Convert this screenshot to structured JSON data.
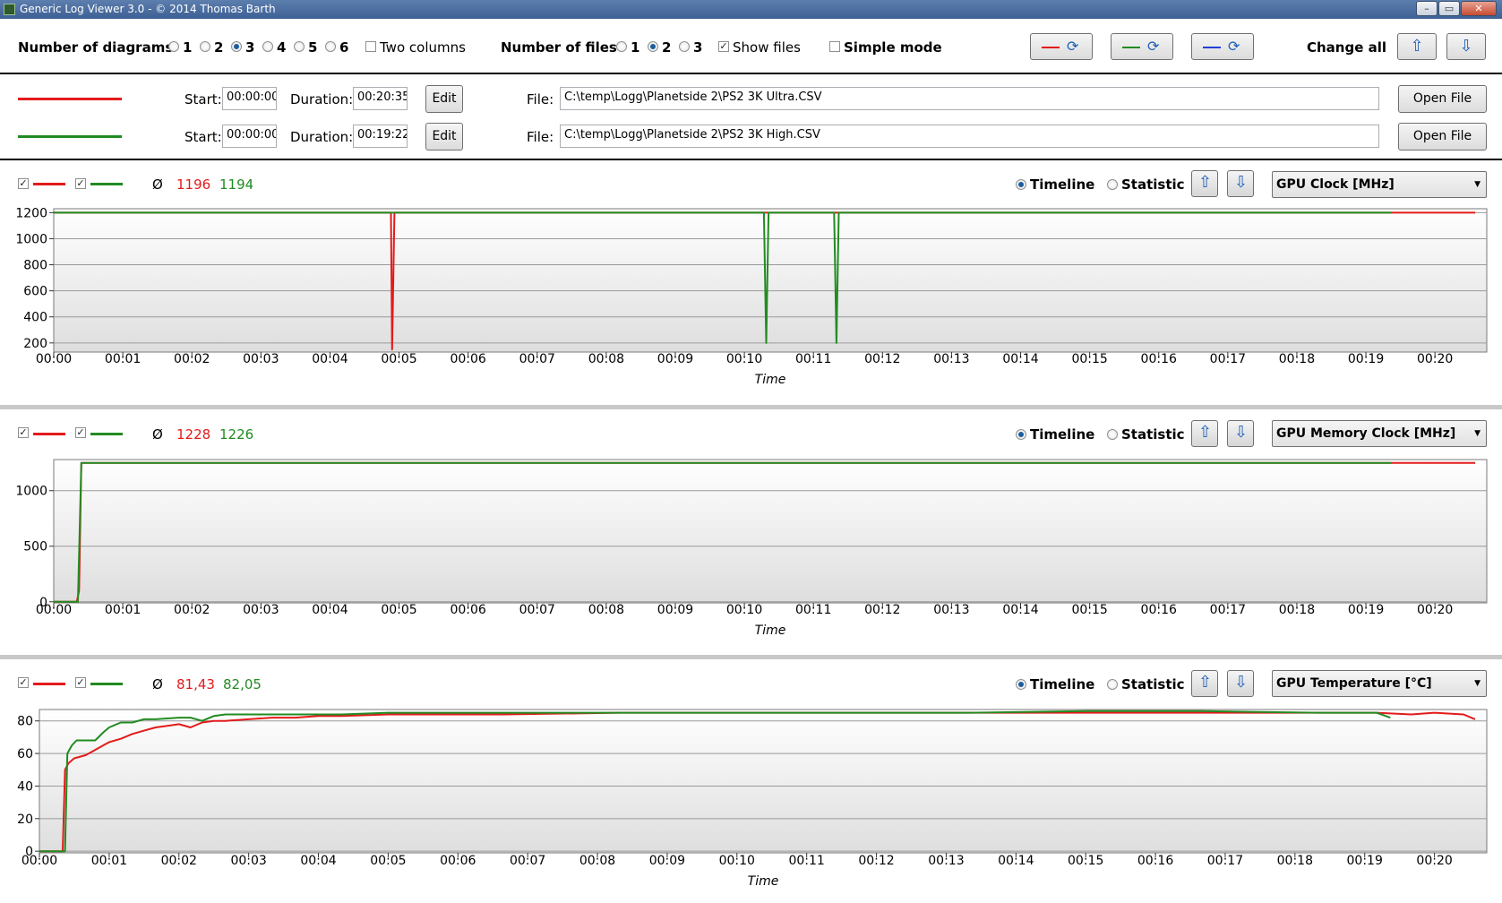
{
  "window": {
    "title": "Generic Log Viewer 3.0 - © 2014 Thomas Barth",
    "buttons": [
      "–",
      "▭",
      "✕"
    ]
  },
  "toolbar": {
    "num_diagrams_label": "Number of diagrams",
    "diagram_options": [
      "1",
      "2",
      "3",
      "4",
      "5",
      "6"
    ],
    "diagram_selected": "3",
    "two_columns_label": "Two columns",
    "two_columns_checked": false,
    "num_files_label": "Number of files",
    "file_options": [
      "1",
      "2",
      "3"
    ],
    "files_selected": "2",
    "show_files_label": "Show files",
    "show_files_checked": true,
    "simple_mode_label": "Simple mode",
    "simple_mode_checked": false,
    "change_all_label": "Change all",
    "colors": {
      "red": "#e31b1b",
      "green": "#228b22",
      "blue": "#1e3fd8"
    }
  },
  "files": [
    {
      "color": "#e31b1b",
      "start_label": "Start:",
      "start": "00:00:00",
      "duration_label": "Duration:",
      "duration": "00:20:35",
      "edit_label": "Edit",
      "file_label": "File:",
      "path": "C:\\temp\\Logg\\Planetside 2\\PS2 3K Ultra.CSV",
      "open_label": "Open File"
    },
    {
      "color": "#228b22",
      "start_label": "Start:",
      "start": "00:00:00",
      "duration_label": "Duration:",
      "duration": "00:19:22",
      "edit_label": "Edit",
      "file_label": "File:",
      "path": "C:\\temp\\Logg\\Planetside 2\\PS2 3K High.CSV",
      "open_label": "Open File"
    }
  ],
  "panels": [
    {
      "avg_symbol": "Ø",
      "avg_red": "1196",
      "avg_green": "1194",
      "timeline_label": "Timeline",
      "statistic_label": "Statistic",
      "view": "timeline",
      "sensor": "GPU Clock [MHz]"
    },
    {
      "avg_symbol": "Ø",
      "avg_red": "1228",
      "avg_green": "1226",
      "timeline_label": "Timeline",
      "statistic_label": "Statistic",
      "view": "timeline",
      "sensor": "GPU Memory Clock [MHz]"
    },
    {
      "avg_symbol": "Ø",
      "avg_red": "81,43",
      "avg_green": "82,05",
      "timeline_label": "Timeline",
      "statistic_label": "Statistic",
      "view": "timeline",
      "sensor": "GPU Temperature [°C]"
    }
  ],
  "chart_data": [
    {
      "type": "line",
      "title": "",
      "xlabel": "Time",
      "ylabel": "",
      "x_ticks": [
        "00:00",
        "00:01",
        "00:02",
        "00:03",
        "00:04",
        "00:05",
        "00:06",
        "00:07",
        "00:08",
        "00:09",
        "00:10",
        "00:11",
        "00:12",
        "00:13",
        "00:14",
        "00:15",
        "00:16",
        "00:17",
        "00:18",
        "00:19",
        "00:20"
      ],
      "y_ticks": [
        200,
        400,
        600,
        800,
        1000,
        1200
      ],
      "xlim_seconds": [
        0,
        1245
      ],
      "ylim": [
        130,
        1230
      ],
      "grid": true,
      "series": [
        {
          "color": "#e31b1b",
          "points": [
            [
              0,
              1200
            ],
            [
              293,
              1200
            ],
            [
              294,
              150
            ],
            [
              296,
              1200
            ],
            [
              1235,
              1200
            ]
          ]
        },
        {
          "color": "#228b22",
          "points": [
            [
              0,
              1200
            ],
            [
              617,
              1200
            ],
            [
              619,
              200
            ],
            [
              621,
              1200
            ],
            [
              678,
              1200
            ],
            [
              680,
              200
            ],
            [
              682,
              1200
            ],
            [
              1162,
              1200
            ]
          ]
        }
      ]
    },
    {
      "type": "line",
      "title": "",
      "xlabel": "Time",
      "ylabel": "",
      "x_ticks": [
        "00:00",
        "00:01",
        "00:02",
        "00:03",
        "00:04",
        "00:05",
        "00:06",
        "00:07",
        "00:08",
        "00:09",
        "00:10",
        "00:11",
        "00:12",
        "00:13",
        "00:14",
        "00:15",
        "00:16",
        "00:17",
        "00:18",
        "00:19",
        "00:20"
      ],
      "y_ticks": [
        0,
        500,
        1000
      ],
      "xlim_seconds": [
        0,
        1245
      ],
      "ylim": [
        -10,
        1280
      ],
      "grid": true,
      "series": [
        {
          "color": "#e31b1b",
          "points": [
            [
              0,
              0
            ],
            [
              20,
              0
            ],
            [
              22,
              100
            ],
            [
              24,
              1250
            ],
            [
              1235,
              1250
            ]
          ]
        },
        {
          "color": "#228b22",
          "points": [
            [
              0,
              0
            ],
            [
              21,
              0
            ],
            [
              24,
              1250
            ],
            [
              1162,
              1250
            ]
          ]
        }
      ]
    },
    {
      "type": "line",
      "title": "",
      "xlabel": "Time",
      "ylabel": "",
      "x_ticks": [
        "00:00",
        "00:01",
        "00:02",
        "00:03",
        "00:04",
        "00:05",
        "00:06",
        "00:07",
        "00:08",
        "00:09",
        "00:10",
        "00:11",
        "00:12",
        "00:13",
        "00:14",
        "00:15",
        "00:16",
        "00:17",
        "00:18",
        "00:19",
        "00:20"
      ],
      "y_ticks": [
        0,
        20,
        40,
        60,
        80
      ],
      "xlim_seconds": [
        0,
        1245
      ],
      "ylim": [
        -1,
        87
      ],
      "grid": true,
      "series": [
        {
          "color": "#e31b1b",
          "points": [
            [
              0,
              0
            ],
            [
              20,
              0
            ],
            [
              22,
              50
            ],
            [
              25,
              54
            ],
            [
              30,
              57
            ],
            [
              40,
              59
            ],
            [
              50,
              63
            ],
            [
              60,
              67
            ],
            [
              70,
              69
            ],
            [
              80,
              72
            ],
            [
              90,
              74
            ],
            [
              100,
              76
            ],
            [
              110,
              77
            ],
            [
              120,
              78
            ],
            [
              130,
              76
            ],
            [
              140,
              79
            ],
            [
              150,
              80
            ],
            [
              160,
              80
            ],
            [
              180,
              81
            ],
            [
              200,
              82
            ],
            [
              220,
              82
            ],
            [
              240,
              83
            ],
            [
              260,
              83
            ],
            [
              300,
              84
            ],
            [
              400,
              84
            ],
            [
              500,
              85
            ],
            [
              600,
              85
            ],
            [
              700,
              85
            ],
            [
              800,
              85
            ],
            [
              900,
              85
            ],
            [
              1000,
              85
            ],
            [
              1100,
              85
            ],
            [
              1150,
              85
            ],
            [
              1180,
              84
            ],
            [
              1200,
              85
            ],
            [
              1225,
              84
            ],
            [
              1235,
              81
            ]
          ]
        },
        {
          "color": "#228b22",
          "points": [
            [
              0,
              0
            ],
            [
              22,
              0
            ],
            [
              24,
              60
            ],
            [
              28,
              65
            ],
            [
              32,
              68
            ],
            [
              40,
              68
            ],
            [
              48,
              68
            ],
            [
              55,
              73
            ],
            [
              60,
              76
            ],
            [
              70,
              79
            ],
            [
              80,
              79
            ],
            [
              90,
              81
            ],
            [
              100,
              81
            ],
            [
              120,
              82
            ],
            [
              130,
              82
            ],
            [
              140,
              80
            ],
            [
              150,
              83
            ],
            [
              160,
              84
            ],
            [
              200,
              84
            ],
            [
              240,
              84
            ],
            [
              260,
              84
            ],
            [
              300,
              85
            ],
            [
              400,
              85
            ],
            [
              500,
              85
            ],
            [
              600,
              85
            ],
            [
              700,
              85
            ],
            [
              800,
              85
            ],
            [
              900,
              86
            ],
            [
              1000,
              86
            ],
            [
              1100,
              85
            ],
            [
              1150,
              85
            ],
            [
              1162,
              82
            ]
          ]
        }
      ]
    }
  ]
}
